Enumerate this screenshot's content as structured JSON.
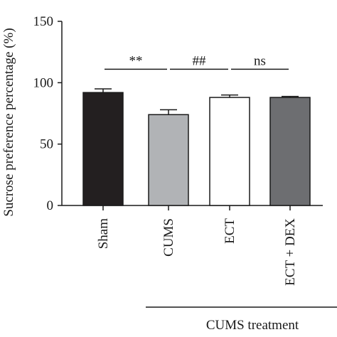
{
  "chart_data": {
    "type": "bar",
    "ylabel": "Sucrose preference percentage (%)",
    "ylim": [
      0,
      150
    ],
    "yticks": [
      0,
      50,
      100,
      150
    ],
    "categories": [
      "Sham",
      "CUMS",
      "ECT",
      "ECT + DEX"
    ],
    "values": [
      92,
      74,
      88,
      88
    ],
    "errors": [
      3,
      4,
      2,
      0.8
    ],
    "bar_colors": [
      "#231f20",
      "#b1b3b6",
      "#ffffff",
      "#6d6e71"
    ],
    "group_label": "CUMS treatment",
    "annotations": [
      {
        "text": "**",
        "from": "Sham",
        "to": "CUMS",
        "y": 111
      },
      {
        "text": "##",
        "from": "CUMS",
        "to": "ECT",
        "y": 111
      },
      {
        "text": "ns",
        "from": "ECT",
        "to": "ECT + DEX",
        "y": 111
      }
    ],
    "grid": false,
    "legend": "none"
  }
}
